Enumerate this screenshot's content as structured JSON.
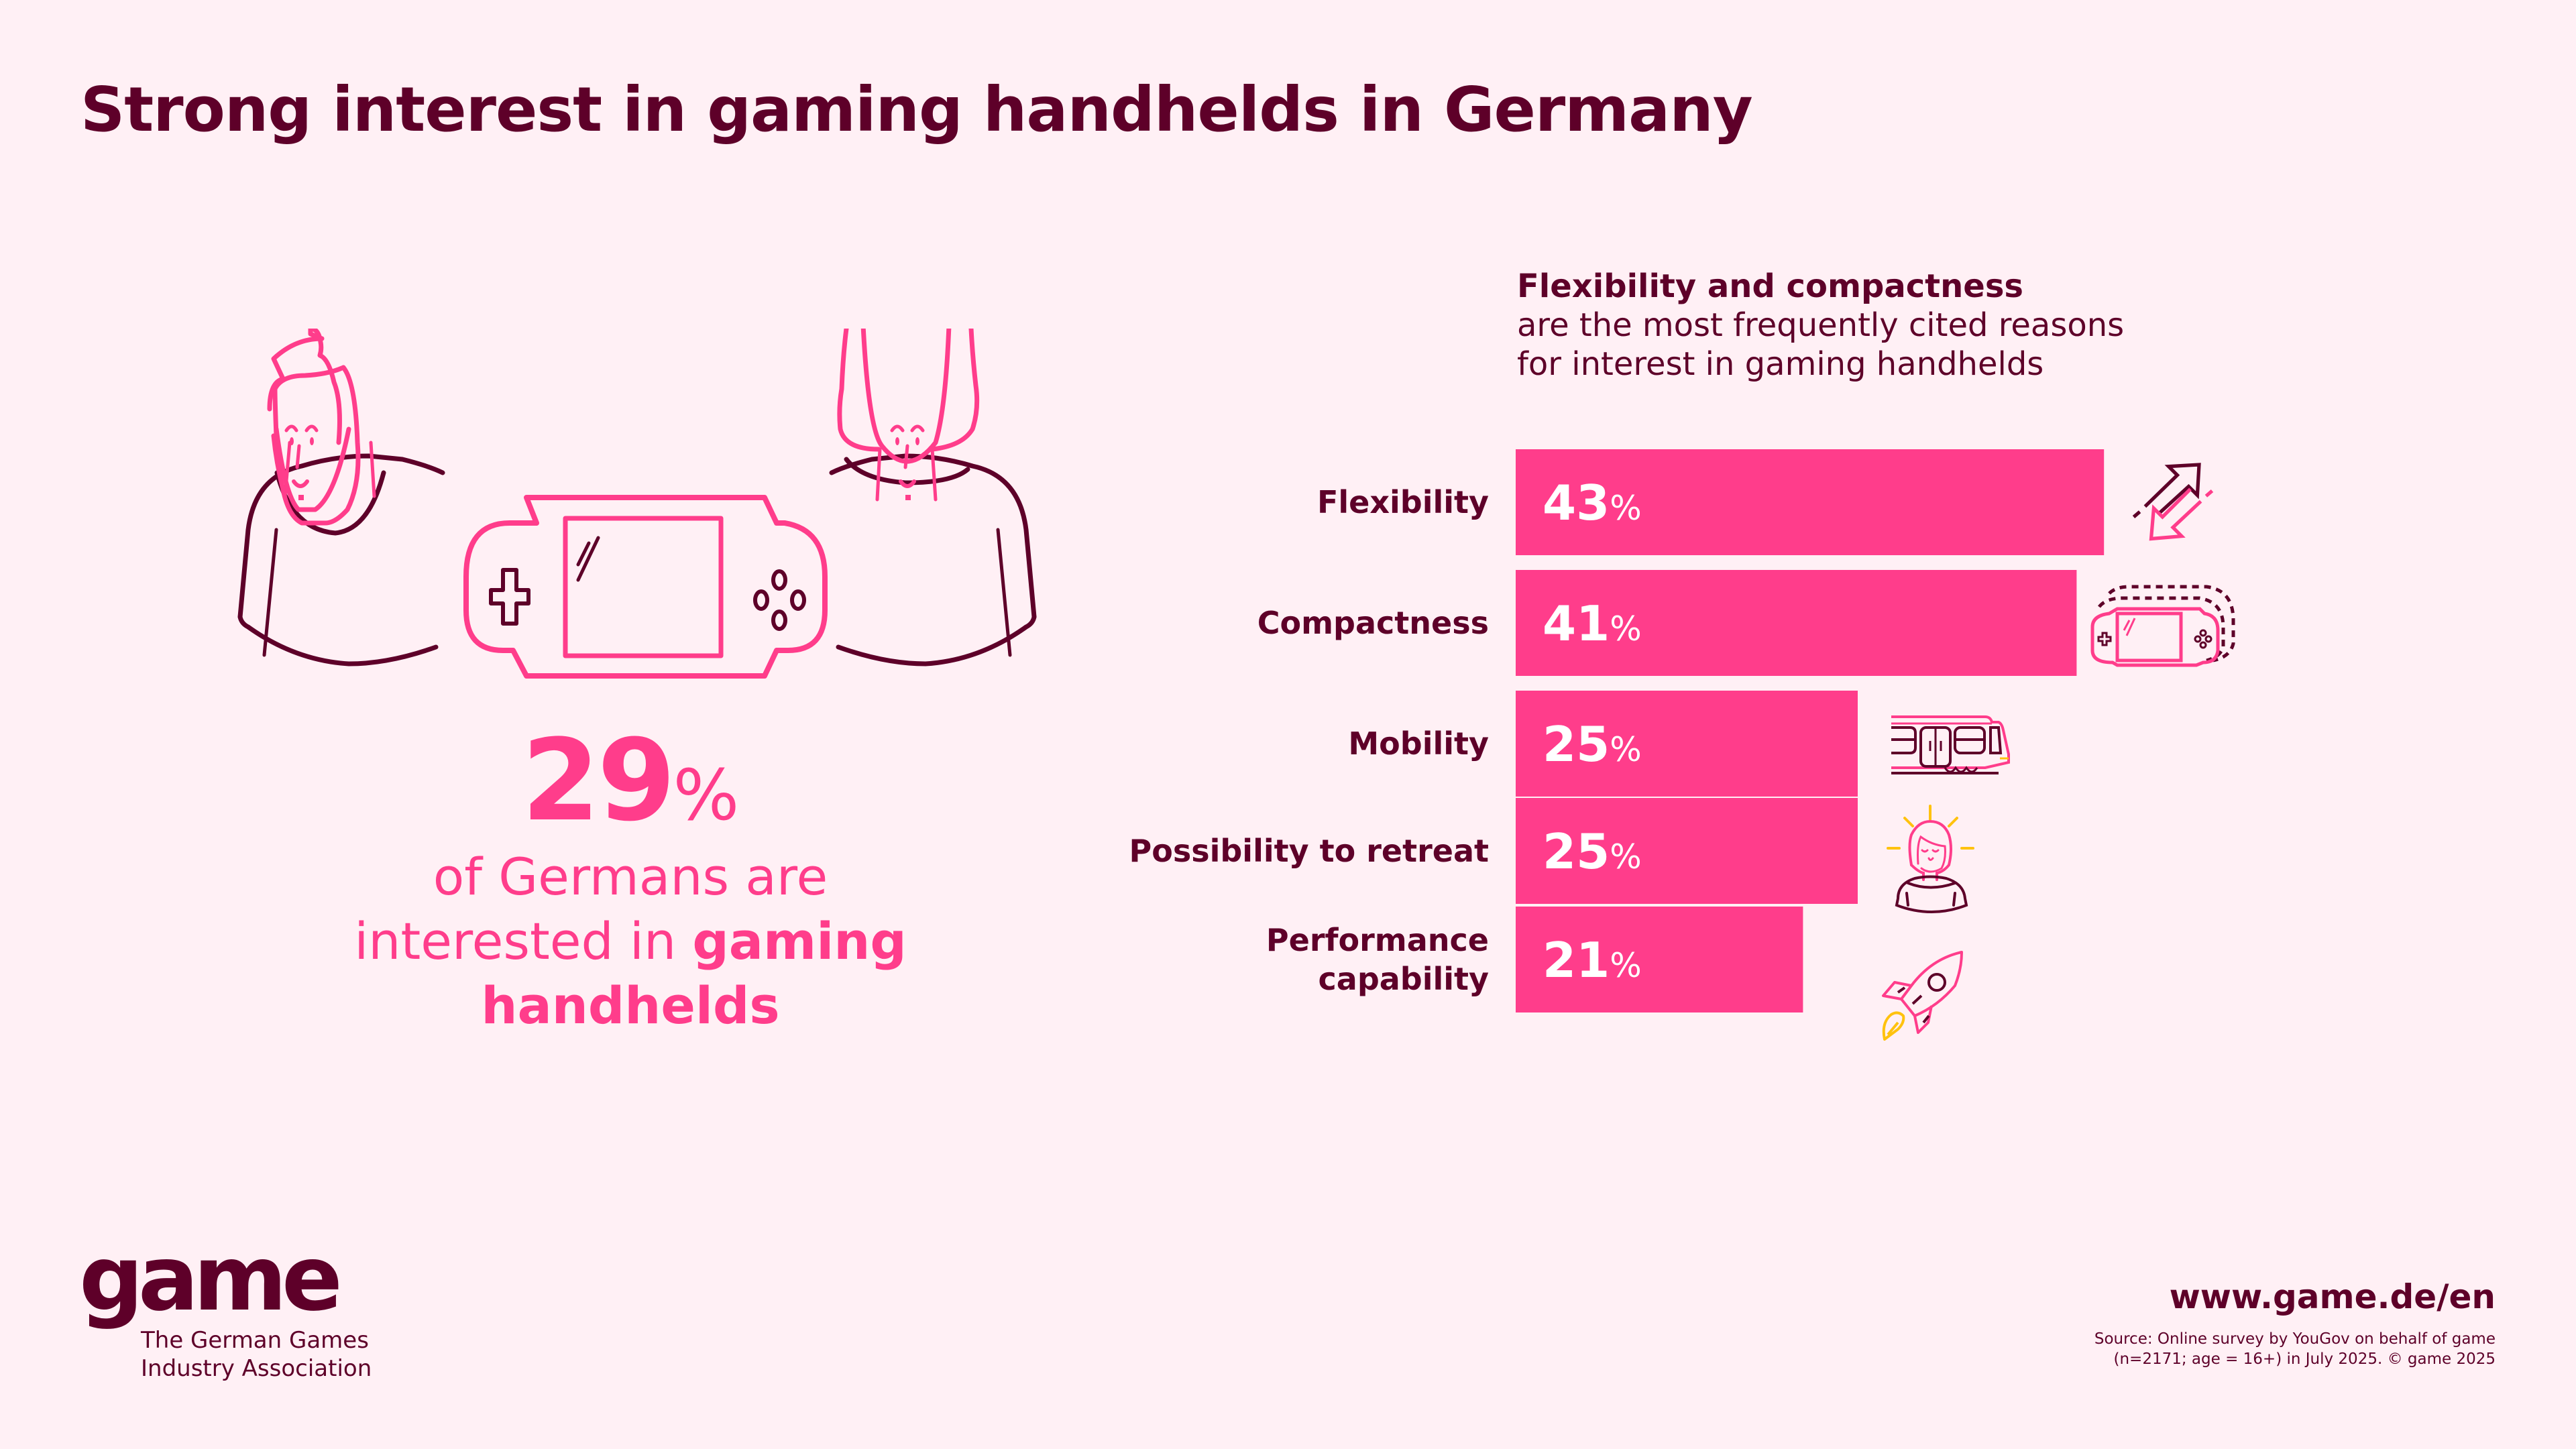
{
  "title": "Strong interest in gaming handhelds in Germany",
  "colors": {
    "background": "#fff0f5",
    "primary_dark": "#5e0029",
    "accent_pink": "#ff3d8b",
    "accent_yellow": "#ffc20e"
  },
  "hero": {
    "stat_value": "29",
    "stat_unit": "%",
    "caption_part1": "of Germans are",
    "caption_part2": "interested in ",
    "caption_bold": "gaming",
    "caption_bold2": "handhelds",
    "illustration_icons": [
      "man-icon",
      "woman-icon",
      "handheld-console-icon"
    ]
  },
  "chart_head": {
    "lead": "Flexibility and compactness",
    "line2": "are the most frequently cited reasons",
    "line3": "for interest in gaming handhelds"
  },
  "chart_data": {
    "type": "bar",
    "orientation": "horizontal",
    "title": "Flexibility and compactness are the most frequently cited reasons for interest in gaming handhelds",
    "xlabel": "",
    "ylabel": "",
    "unit": "%",
    "xlim": [
      0,
      43
    ],
    "grid": false,
    "categories": [
      "Flexibility",
      "Compactness",
      "Mobility",
      "Possibility to retreat",
      "Performance capability"
    ],
    "category_lines": [
      [
        "Flexibility"
      ],
      [
        "Compactness"
      ],
      [
        "Mobility"
      ],
      [
        "Possibility to retreat"
      ],
      [
        "Performance",
        "capability"
      ]
    ],
    "values": [
      43,
      41,
      25,
      25,
      21
    ],
    "icons": [
      "arrows-exchange-icon",
      "compact-handheld-icon",
      "train-icon",
      "relaxed-woman-icon",
      "rocket-icon"
    ]
  },
  "footer": {
    "logo_word": "game",
    "logo_sub_line1": "The German Games",
    "logo_sub_line2": "Industry Association",
    "url": "www.game.de/en",
    "source_line1": "Source: Online survey by YouGov on behalf of game",
    "source_line2": "(n=2171; age = 16+) in July 2025. © game 2025"
  }
}
